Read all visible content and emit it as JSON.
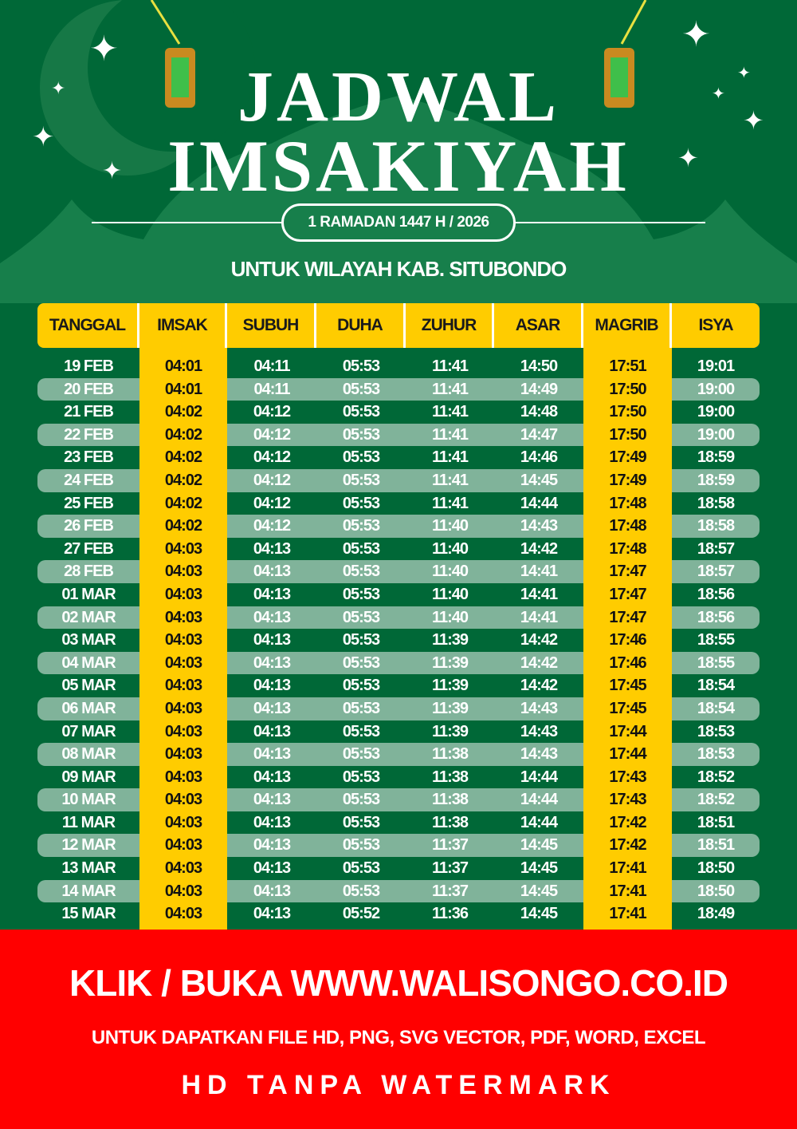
{
  "title": {
    "line1": "JADWAL",
    "line2": "IMSAKIYAH"
  },
  "period": "1 RAMADAN 1447 H / 2026",
  "region": "UNTUK WILAYAH KAB. SITUBONDO",
  "colors": {
    "background": "#006837",
    "accent": "#ffcc00",
    "row_alt": "#80b39a",
    "banner": "#ff0000"
  },
  "columns": [
    "TANGGAL",
    "IMSAK",
    "SUBUH",
    "DUHA",
    "ZUHUR",
    "ASAR",
    "MAGRIB",
    "ISYA"
  ],
  "rows": [
    [
      "19 FEB",
      "04:01",
      "04:11",
      "05:53",
      "11:41",
      "14:50",
      "17:51",
      "19:01"
    ],
    [
      "20 FEB",
      "04:01",
      "04:11",
      "05:53",
      "11:41",
      "14:49",
      "17:50",
      "19:00"
    ],
    [
      "21 FEB",
      "04:02",
      "04:12",
      "05:53",
      "11:41",
      "14:48",
      "17:50",
      "19:00"
    ],
    [
      "22 FEB",
      "04:02",
      "04:12",
      "05:53",
      "11:41",
      "14:47",
      "17:50",
      "19:00"
    ],
    [
      "23 FEB",
      "04:02",
      "04:12",
      "05:53",
      "11:41",
      "14:46",
      "17:49",
      "18:59"
    ],
    [
      "24 FEB",
      "04:02",
      "04:12",
      "05:53",
      "11:41",
      "14:45",
      "17:49",
      "18:59"
    ],
    [
      "25 FEB",
      "04:02",
      "04:12",
      "05:53",
      "11:41",
      "14:44",
      "17:48",
      "18:58"
    ],
    [
      "26 FEB",
      "04:02",
      "04:12",
      "05:53",
      "11:40",
      "14:43",
      "17:48",
      "18:58"
    ],
    [
      "27 FEB",
      "04:03",
      "04:13",
      "05:53",
      "11:40",
      "14:42",
      "17:48",
      "18:57"
    ],
    [
      "28 FEB",
      "04:03",
      "04:13",
      "05:53",
      "11:40",
      "14:41",
      "17:47",
      "18:57"
    ],
    [
      "01 MAR",
      "04:03",
      "04:13",
      "05:53",
      "11:40",
      "14:41",
      "17:47",
      "18:56"
    ],
    [
      "02 MAR",
      "04:03",
      "04:13",
      "05:53",
      "11:40",
      "14:41",
      "17:47",
      "18:56"
    ],
    [
      "03 MAR",
      "04:03",
      "04:13",
      "05:53",
      "11:39",
      "14:42",
      "17:46",
      "18:55"
    ],
    [
      "04 MAR",
      "04:03",
      "04:13",
      "05:53",
      "11:39",
      "14:42",
      "17:46",
      "18:55"
    ],
    [
      "05 MAR",
      "04:03",
      "04:13",
      "05:53",
      "11:39",
      "14:42",
      "17:45",
      "18:54"
    ],
    [
      "06 MAR",
      "04:03",
      "04:13",
      "05:53",
      "11:39",
      "14:43",
      "17:45",
      "18:54"
    ],
    [
      "07 MAR",
      "04:03",
      "04:13",
      "05:53",
      "11:39",
      "14:43",
      "17:44",
      "18:53"
    ],
    [
      "08 MAR",
      "04:03",
      "04:13",
      "05:53",
      "11:38",
      "14:43",
      "17:44",
      "18:53"
    ],
    [
      "09 MAR",
      "04:03",
      "04:13",
      "05:53",
      "11:38",
      "14:44",
      "17:43",
      "18:52"
    ],
    [
      "10 MAR",
      "04:03",
      "04:13",
      "05:53",
      "11:38",
      "14:44",
      "17:43",
      "18:52"
    ],
    [
      "11 MAR",
      "04:03",
      "04:13",
      "05:53",
      "11:38",
      "14:44",
      "17:42",
      "18:51"
    ],
    [
      "12 MAR",
      "04:03",
      "04:13",
      "05:53",
      "11:37",
      "14:45",
      "17:42",
      "18:51"
    ],
    [
      "13 MAR",
      "04:03",
      "04:13",
      "05:53",
      "11:37",
      "14:45",
      "17:41",
      "18:50"
    ],
    [
      "14 MAR",
      "04:03",
      "04:13",
      "05:53",
      "11:37",
      "14:45",
      "17:41",
      "18:50"
    ],
    [
      "15 MAR",
      "04:03",
      "04:13",
      "05:52",
      "11:36",
      "14:45",
      "17:41",
      "18:49"
    ]
  ],
  "banner": {
    "line1": "KLIK / BUKA WWW.WALISONGO.CO.ID",
    "line2": "UNTUK DAPATKAN FILE HD, PNG, SVG VECTOR, PDF, WORD, EXCEL",
    "line3": "HD TANPA WATERMARK"
  }
}
